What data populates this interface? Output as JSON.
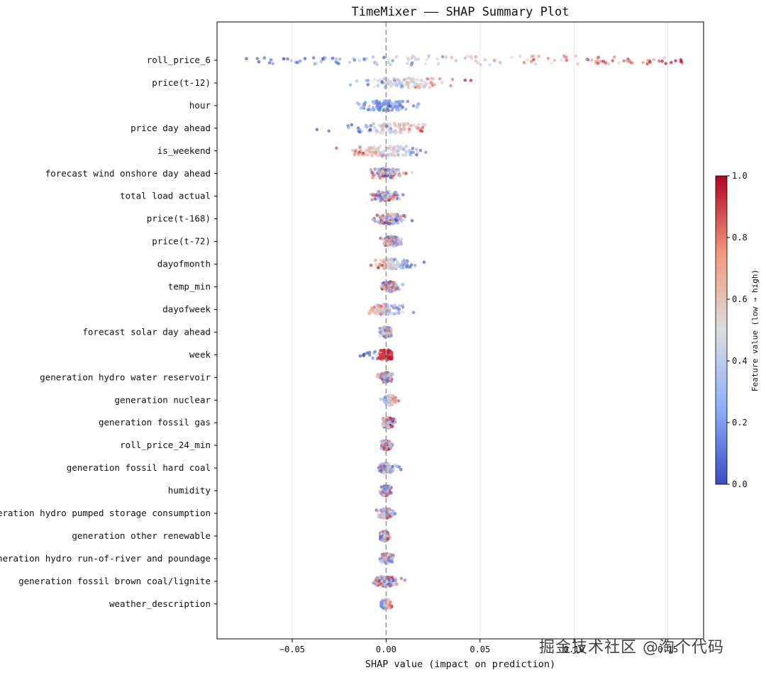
{
  "chart_data": {
    "type": "scatter",
    "subtype": "shap-beeswarm",
    "title": "TimeMixer —— SHAP Summary Plot",
    "xlabel": "SHAP value (impact on prediction)",
    "ylabel": "",
    "xlim": [
      -0.09,
      0.169
    ],
    "xticks": [
      -0.05,
      0.0,
      0.05,
      0.1,
      0.15
    ],
    "xtick_labels": [
      "−0.05",
      "0.00",
      "0.05",
      "0.10",
      "0.15"
    ],
    "grid": "vertical dashed",
    "reference_line": 0.0,
    "features": [
      {
        "name": "roll_price_6",
        "spread": [
          -0.078,
          0.158
        ],
        "center": 0.045,
        "hi_side": "positive",
        "lo_side": "mixed"
      },
      {
        "name": "price(t-12)",
        "spread": [
          -0.022,
          0.047
        ],
        "center": 0.012,
        "hi_side": "positive",
        "lo_side": "negative"
      },
      {
        "name": "hour",
        "spread": [
          -0.021,
          0.02
        ],
        "center": 0.0,
        "hi_side": "mixed",
        "lo_side": "mixed"
      },
      {
        "name": "price day ahead",
        "spread": [
          -0.04,
          0.022
        ],
        "center": 0.003,
        "hi_side": "positive",
        "lo_side": "negative"
      },
      {
        "name": "is_weekend",
        "spread": [
          -0.03,
          0.024
        ],
        "center": 0.0,
        "hi_side": "negative",
        "lo_side": "positive"
      },
      {
        "name": "forecast wind onshore day ahead",
        "spread": [
          -0.012,
          0.014
        ],
        "center": 0.0,
        "hi_side": "mixed",
        "lo_side": "mixed"
      },
      {
        "name": "total load actual",
        "spread": [
          -0.012,
          0.011
        ],
        "center": 0.0,
        "hi_side": "mixed",
        "lo_side": "mixed"
      },
      {
        "name": "price(t-168)",
        "spread": [
          -0.008,
          0.014
        ],
        "center": 0.002,
        "hi_side": "mixed",
        "lo_side": "mixed"
      },
      {
        "name": "price(t-72)",
        "spread": [
          -0.003,
          0.012
        ],
        "center": 0.003,
        "hi_side": "mixed",
        "lo_side": "mixed"
      },
      {
        "name": "dayofmonth",
        "spread": [
          -0.008,
          0.021
        ],
        "center": 0.003,
        "hi_side": "negative",
        "lo_side": "positive"
      },
      {
        "name": "temp_min",
        "spread": [
          -0.003,
          0.009
        ],
        "center": 0.002,
        "hi_side": "mixed",
        "lo_side": "mixed"
      },
      {
        "name": "dayofweek",
        "spread": [
          -0.012,
          0.02
        ],
        "center": 0.0,
        "hi_side": "negative",
        "lo_side": "positive"
      },
      {
        "name": "forecast solar day ahead",
        "spread": [
          -0.004,
          0.006
        ],
        "center": 0.0,
        "hi_side": "mixed",
        "lo_side": "mixed"
      },
      {
        "name": "week",
        "spread": [
          -0.014,
          0.003
        ],
        "center": 0.0,
        "hi_side": "positive",
        "lo_side": "negative"
      },
      {
        "name": "generation hydro water reservoir",
        "spread": [
          -0.005,
          0.004
        ],
        "center": 0.0,
        "hi_side": "mixed",
        "lo_side": "mixed"
      },
      {
        "name": "generation nuclear",
        "spread": [
          -0.003,
          0.007
        ],
        "center": 0.002,
        "hi_side": "positive",
        "lo_side": "positive"
      },
      {
        "name": "generation fossil gas",
        "spread": [
          -0.004,
          0.006
        ],
        "center": 0.001,
        "hi_side": "mixed",
        "lo_side": "mixed"
      },
      {
        "name": "roll_price_24_min",
        "spread": [
          -0.003,
          0.004
        ],
        "center": 0.0,
        "hi_side": "mixed",
        "lo_side": "mixed"
      },
      {
        "name": "generation fossil hard coal",
        "spread": [
          -0.004,
          0.008
        ],
        "center": 0.0,
        "hi_side": "mixed",
        "lo_side": "mixed"
      },
      {
        "name": "humidity",
        "spread": [
          -0.004,
          0.004
        ],
        "center": 0.0,
        "hi_side": "mixed",
        "lo_side": "mixed"
      },
      {
        "name": "generation hydro pumped storage consumption",
        "spread": [
          -0.006,
          0.006
        ],
        "center": 0.0,
        "hi_side": "mixed",
        "lo_side": "mixed"
      },
      {
        "name": "generation other renewable",
        "spread": [
          -0.003,
          0.002
        ],
        "center": -0.001,
        "hi_side": "mixed",
        "lo_side": "mixed"
      },
      {
        "name": "generation hydro run-of-river and poundage",
        "spread": [
          -0.005,
          0.004
        ],
        "center": 0.0,
        "hi_side": "mixed",
        "lo_side": "mixed"
      },
      {
        "name": "generation fossil brown coal/lignite",
        "spread": [
          -0.009,
          0.01
        ],
        "center": 0.0,
        "hi_side": "mixed",
        "lo_side": "mixed"
      },
      {
        "name": "weather_description",
        "spread": [
          -0.003,
          0.003
        ],
        "center": 0.0,
        "hi_side": "positive",
        "lo_side": "mixed"
      }
    ],
    "colorbar": {
      "label": "Feature value (low → high)",
      "ticks": [
        "0.0",
        "0.2",
        "0.4",
        "0.6",
        "0.8",
        "1.0"
      ],
      "colormap": "coolwarm",
      "low_color": "#3b4cc0",
      "mid_color": "#dddddd",
      "high_color": "#b40426"
    }
  },
  "watermark": {
    "text": "掘金技术社区 @淘个代码"
  }
}
